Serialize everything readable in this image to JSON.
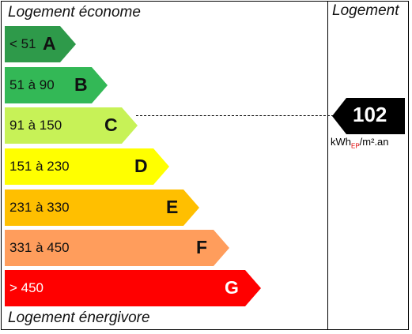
{
  "header": {
    "efficient_label": "Logement économe",
    "column_title": "Logement"
  },
  "footer": {
    "inefficient_label": "Logement énergivore"
  },
  "classes": [
    {
      "range": "< 51",
      "letter": "A",
      "color": "#2e9a4a",
      "text_color": "dark"
    },
    {
      "range": "51 à 90",
      "letter": "B",
      "color": "#33b856",
      "text_color": "dark"
    },
    {
      "range": "91 à 150",
      "letter": "C",
      "color": "#c7f257",
      "text_color": "dark"
    },
    {
      "range": "151 à 230",
      "letter": "D",
      "color": "#ffff00",
      "text_color": "dark"
    },
    {
      "range": "231 à 330",
      "letter": "E",
      "color": "#ffbf00",
      "text_color": "dark"
    },
    {
      "range": "331 à 450",
      "letter": "F",
      "color": "#ff9d5c",
      "text_color": "dark"
    },
    {
      "range": "> 450",
      "letter": "G",
      "color": "#ff0000",
      "text_color": "light"
    }
  ],
  "rating": {
    "value": "102",
    "class": "C",
    "unit_main": "kWh",
    "unit_sub": "EP",
    "unit_tail": "/m².an"
  }
}
